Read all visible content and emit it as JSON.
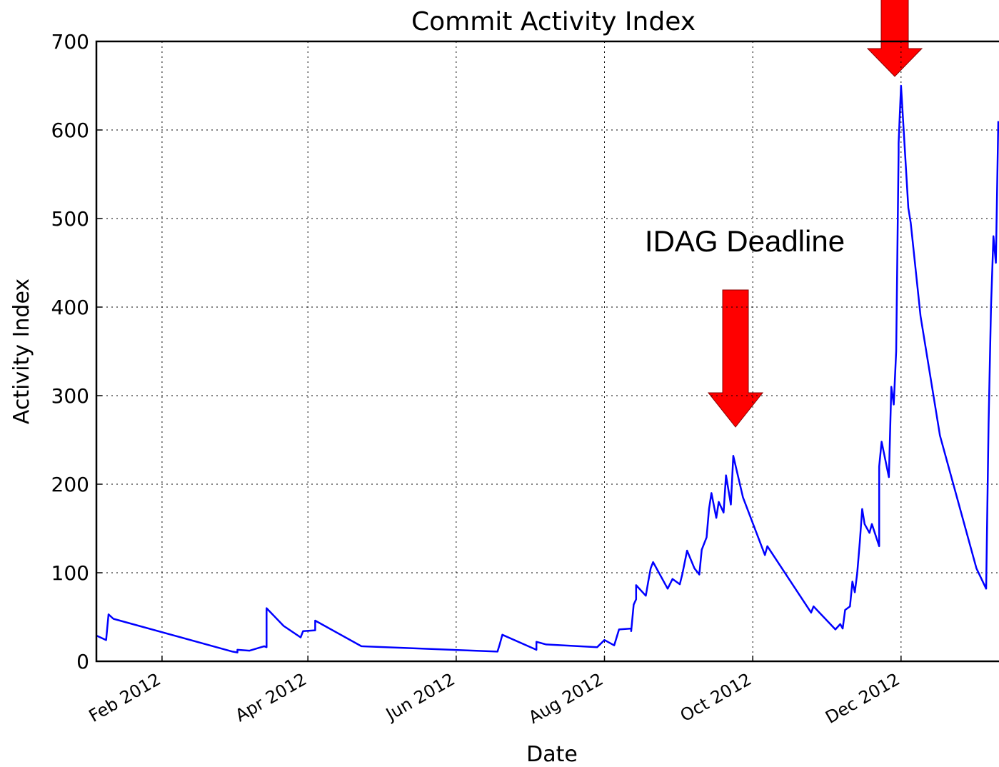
{
  "chart_data": {
    "type": "line",
    "title": "Commit Activity Index",
    "xlabel": "Date",
    "ylabel": "Activity Index",
    "annotation": "IDAG Deadline",
    "x": [
      "2012-01-05",
      "2012-01-09",
      "2012-01-10",
      "2012-01-12",
      "2012-03-01",
      "2012-03-03",
      "2012-03-03",
      "2012-03-08",
      "2012-03-14",
      "2012-03-15",
      "2012-03-15",
      "2012-03-22",
      "2012-03-29",
      "2012-03-30",
      "2012-04-04",
      "2012-04-04",
      "2012-04-23",
      "2012-06-18",
      "2012-06-19",
      "2012-06-20",
      "2012-07-04",
      "2012-07-04",
      "2012-07-08",
      "2012-07-29",
      "2012-08-01",
      "2012-08-05",
      "2012-08-07",
      "2012-08-12",
      "2012-08-12",
      "2012-08-13",
      "2012-08-14",
      "2012-08-14",
      "2012-08-18",
      "2012-08-19",
      "2012-08-20",
      "2012-08-21",
      "2012-08-27",
      "2012-08-29",
      "2012-09-01",
      "2012-09-02",
      "2012-09-04",
      "2012-09-07",
      "2012-09-09",
      "2012-09-10",
      "2012-09-12",
      "2012-09-13",
      "2012-09-14",
      "2012-09-16",
      "2012-09-17",
      "2012-09-19",
      "2012-09-20",
      "2012-09-22",
      "2012-09-23",
      "2012-09-27",
      "2012-10-06",
      "2012-10-07",
      "2012-10-25",
      "2012-10-26",
      "2012-11-04",
      "2012-11-06",
      "2012-11-07",
      "2012-11-08",
      "2012-11-10",
      "2012-11-11",
      "2012-11-12",
      "2012-11-13",
      "2012-11-14",
      "2012-11-15",
      "2012-11-16",
      "2012-11-18",
      "2012-11-19",
      "2012-11-22",
      "2012-11-22",
      "2012-11-23",
      "2012-11-26",
      "2012-11-27",
      "2012-11-28",
      "2012-11-29",
      "2012-11-30",
      "2012-11-30",
      "2012-12-01",
      "2012-12-04",
      "2012-12-05",
      "2012-12-09",
      "2012-12-17",
      "2013-01-01",
      "2013-01-05",
      "2013-01-06",
      "2013-01-07",
      "2013-01-08",
      "2013-01-09",
      "2013-01-10"
    ],
    "series": [
      {
        "name": "Activity Index",
        "color": "#0000ff",
        "values": [
          29,
          24,
          53,
          48,
          11,
          10,
          13,
          12,
          17,
          16,
          60,
          40,
          27,
          34,
          35,
          46,
          17,
          11,
          20,
          30,
          13,
          22,
          19,
          16,
          24,
          18,
          36,
          37,
          34,
          64,
          70,
          86,
          74,
          90,
          105,
          112,
          82,
          93,
          87,
          98,
          125,
          105,
          98,
          126,
          140,
          172,
          190,
          162,
          180,
          168,
          210,
          177,
          232,
          185,
          120,
          130,
          55,
          62,
          36,
          42,
          37,
          58,
          62,
          90,
          78,
          100,
          134,
          172,
          155,
          145,
          155,
          130,
          220,
          248,
          208,
          310,
          290,
          350,
          575,
          585,
          650,
          512,
          495,
          390,
          255,
          105,
          82,
          268,
          400,
          480,
          450,
          610
        ]
      }
    ],
    "xlim": [
      "2012-01-05",
      "2013-01-10"
    ],
    "xticks": [
      {
        "value": "2012-02-01",
        "label": "Feb 2012"
      },
      {
        "value": "2012-04-01",
        "label": "Apr 2012"
      },
      {
        "value": "2012-06-01",
        "label": "Jun 2012"
      },
      {
        "value": "2012-08-01",
        "label": "Aug 2012"
      },
      {
        "value": "2012-10-01",
        "label": "Oct 2012"
      },
      {
        "value": "2012-12-01",
        "label": "Dec 2012"
      }
    ],
    "ylim": [
      0,
      700
    ],
    "yticks": [
      0,
      100,
      200,
      300,
      400,
      500,
      600,
      700
    ],
    "grid": true
  }
}
